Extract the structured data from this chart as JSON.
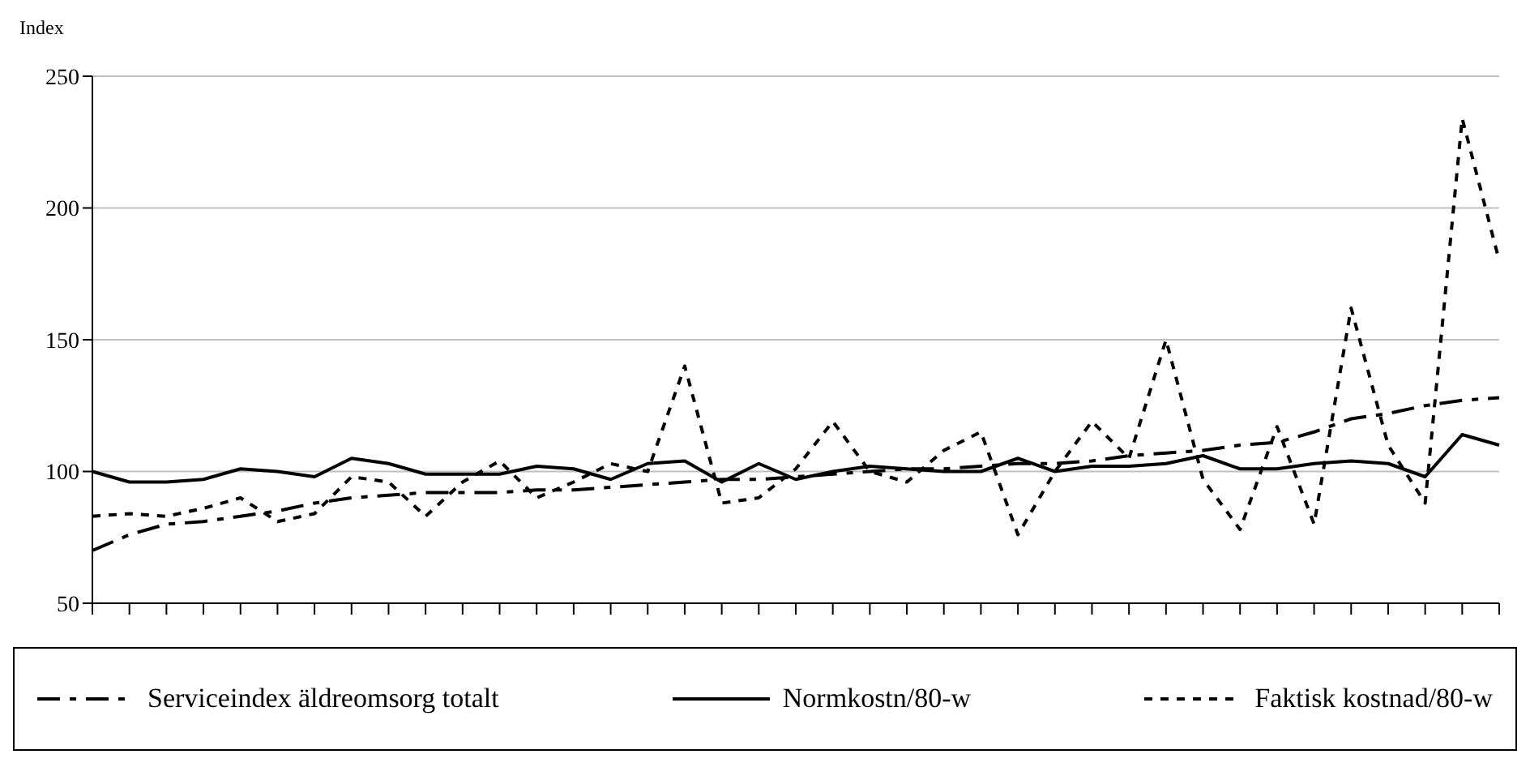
{
  "chart_data": {
    "type": "line",
    "ylabel": "Index",
    "categories": [
      null,
      null,
      null,
      null,
      null,
      null,
      null,
      null,
      null,
      null,
      null,
      null,
      null,
      null,
      null,
      null,
      null,
      null,
      null,
      null,
      null,
      null,
      null,
      null,
      null,
      null,
      null,
      null,
      null,
      null,
      null,
      null,
      null,
      null,
      null,
      null,
      null,
      null,
      null
    ],
    "series": [
      {
        "name": "Serviceindex äldreomsorg totalt",
        "color": "#000000",
        "line_style": "dashed",
        "values": [
          70,
          76,
          80,
          81,
          83,
          85,
          88,
          90,
          91,
          92,
          92,
          92,
          93,
          93,
          94,
          95,
          96,
          97,
          97,
          98,
          99,
          100,
          101,
          101,
          102,
          103,
          103,
          104,
          106,
          107,
          108,
          110,
          111,
          115,
          120,
          122,
          125,
          127,
          128
        ]
      },
      {
        "name": "Normkostn/80-w",
        "color": "#000000",
        "line_style": "solid",
        "values": [
          100,
          96,
          96,
          97,
          101,
          100,
          98,
          105,
          103,
          99,
          99,
          99,
          102,
          101,
          97,
          103,
          104,
          96,
          103,
          97,
          100,
          102,
          101,
          100,
          100,
          105,
          100,
          102,
          102,
          103,
          106,
          101,
          101,
          103,
          104,
          103,
          98,
          114,
          110
        ]
      },
      {
        "name": "Faktisk kostnad/80-w",
        "color": "#000000",
        "line_style": "dotted",
        "values": [
          83,
          84,
          83,
          86,
          90,
          81,
          84,
          98,
          96,
          83,
          96,
          104,
          90,
          96,
          103,
          100,
          140,
          88,
          90,
          101,
          119,
          100,
          96,
          108,
          115,
          76,
          100,
          119,
          105,
          150,
          97,
          78,
          117,
          80,
          162,
          110,
          88,
          234,
          180
        ]
      }
    ],
    "ylim": [
      50,
      250
    ],
    "yticks": [
      50,
      100,
      150,
      200,
      250
    ],
    "grid": "y",
    "legend": "bottom",
    "marker": "none",
    "tick_labels": "y"
  }
}
